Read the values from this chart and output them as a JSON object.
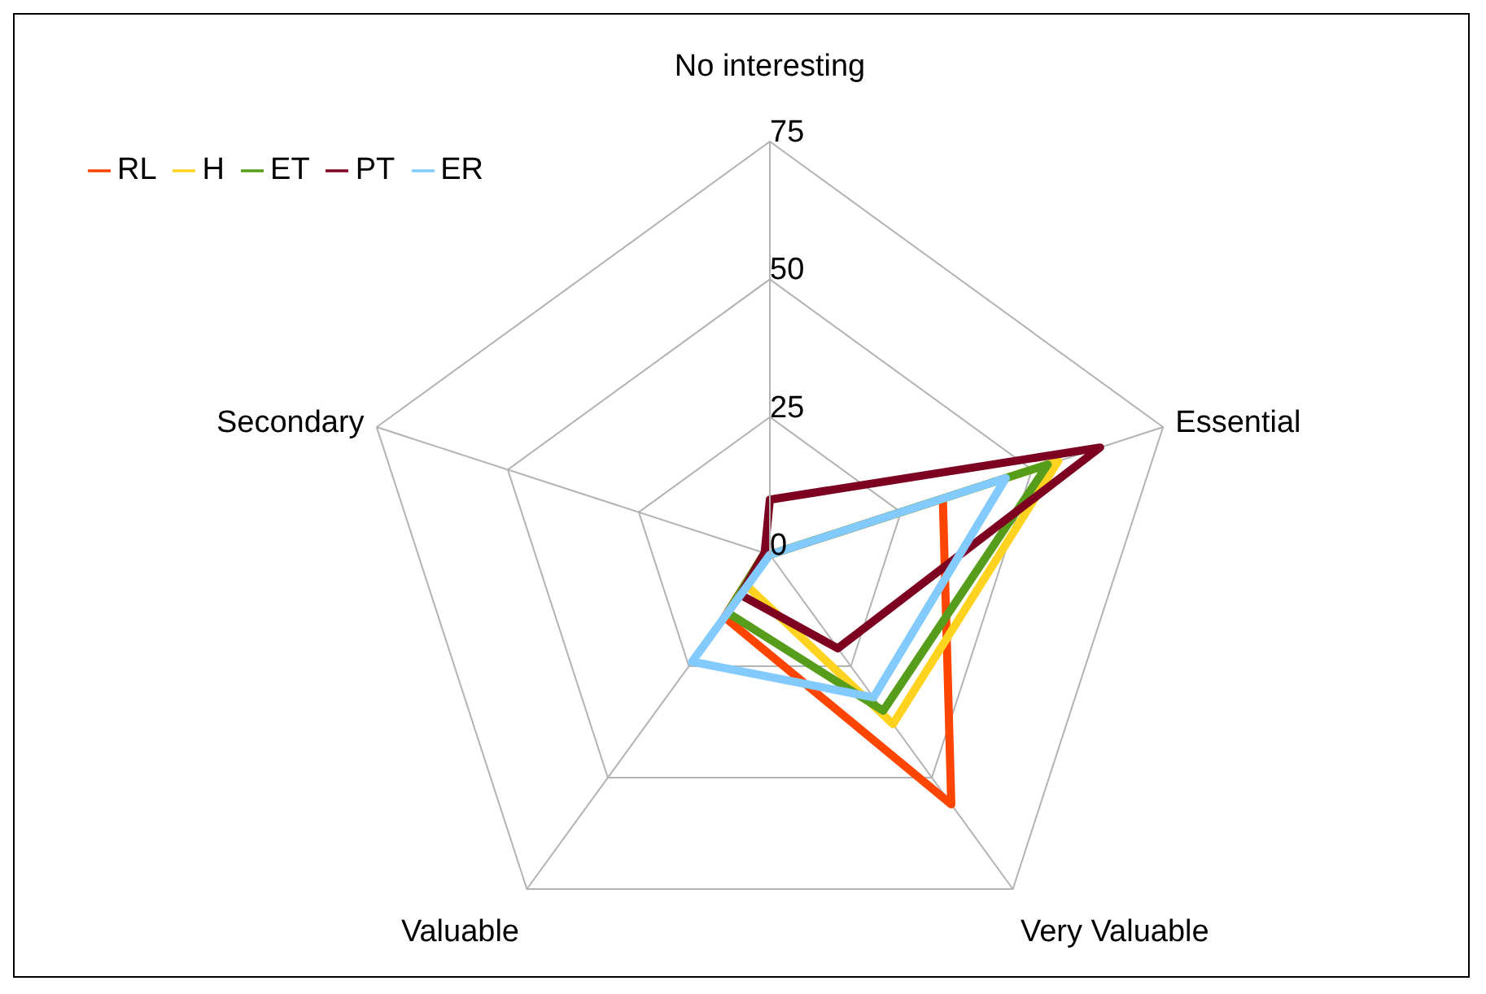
{
  "chart_data": {
    "type": "radar",
    "categories": [
      "No interesting",
      "Essential",
      "Very Valuable",
      "Valuable",
      "Secondary"
    ],
    "ylim": [
      0,
      75
    ],
    "yticks": [
      0,
      25,
      50,
      75
    ],
    "legend": "top left",
    "series": [
      {
        "name": "RL",
        "color": "#ff4500",
        "values": [
          0,
          33,
          56,
          14,
          1
        ]
      },
      {
        "name": "H",
        "color": "#ffd320",
        "values": [
          0,
          55,
          38,
          7,
          1
        ]
      },
      {
        "name": "ET",
        "color": "#579d1c",
        "values": [
          0,
          53,
          35,
          13,
          1
        ]
      },
      {
        "name": "PT",
        "color": "#7e0021",
        "values": [
          10,
          63,
          21,
          9,
          1
        ]
      },
      {
        "name": "ER",
        "color": "#83caff",
        "values": [
          0,
          45,
          32,
          24,
          0
        ]
      }
    ]
  }
}
